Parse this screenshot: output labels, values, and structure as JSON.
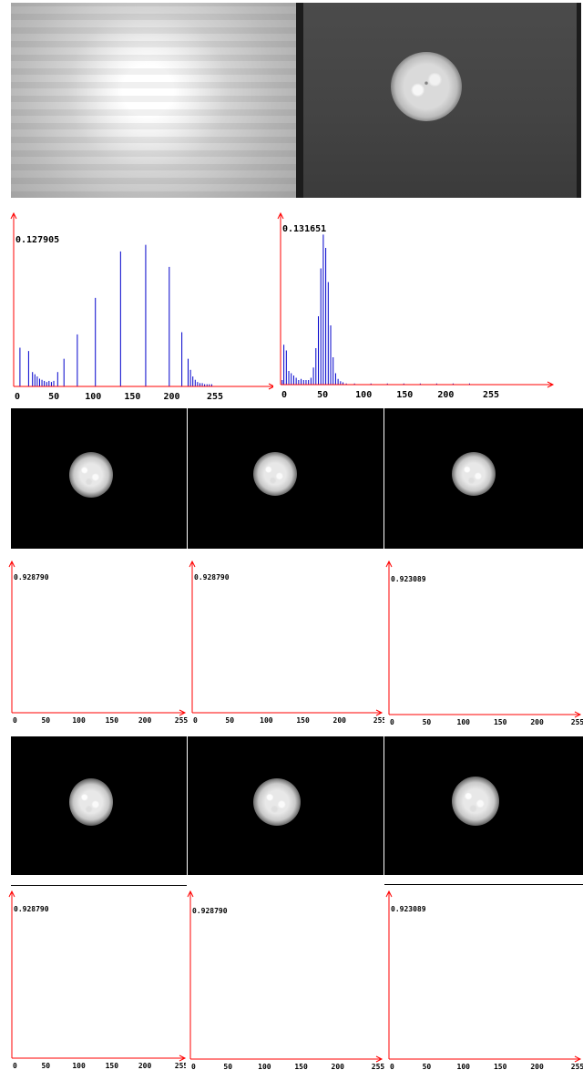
{
  "colors": {
    "axis": "#ff0000",
    "bar": "#0000cc",
    "background": "#ffffff"
  },
  "chart_data": [
    {
      "type": "bar",
      "peak_label": "0.127905",
      "xticks": [
        "0",
        "50",
        "100",
        "150",
        "200",
        "255"
      ],
      "xlim": [
        0,
        255
      ],
      "ylim": [
        0,
        0.14
      ],
      "bars": [
        {
          "x": 8,
          "y": 0.035
        },
        {
          "x": 19,
          "y": 0.032
        },
        {
          "x": 24,
          "y": 0.013
        },
        {
          "x": 27,
          "y": 0.011
        },
        {
          "x": 30,
          "y": 0.009
        },
        {
          "x": 33,
          "y": 0.007
        },
        {
          "x": 36,
          "y": 0.006
        },
        {
          "x": 39,
          "y": 0.005
        },
        {
          "x": 42,
          "y": 0.004
        },
        {
          "x": 45,
          "y": 0.005
        },
        {
          "x": 48,
          "y": 0.004
        },
        {
          "x": 51,
          "y": 0.005
        },
        {
          "x": 56,
          "y": 0.013
        },
        {
          "x": 64,
          "y": 0.025
        },
        {
          "x": 81,
          "y": 0.047
        },
        {
          "x": 104,
          "y": 0.08
        },
        {
          "x": 136,
          "y": 0.122
        },
        {
          "x": 168,
          "y": 0.127905
        },
        {
          "x": 198,
          "y": 0.108
        },
        {
          "x": 214,
          "y": 0.049
        },
        {
          "x": 222,
          "y": 0.025
        },
        {
          "x": 225,
          "y": 0.015
        },
        {
          "x": 228,
          "y": 0.009
        },
        {
          "x": 231,
          "y": 0.006
        },
        {
          "x": 234,
          "y": 0.004
        },
        {
          "x": 237,
          "y": 0.003
        },
        {
          "x": 240,
          "y": 0.003
        },
        {
          "x": 243,
          "y": 0.002
        },
        {
          "x": 246,
          "y": 0.002
        },
        {
          "x": 249,
          "y": 0.002
        },
        {
          "x": 252,
          "y": 0.002
        }
      ]
    },
    {
      "type": "bar",
      "peak_label": "0.131651",
      "xticks": [
        "0",
        "50",
        "100",
        "150",
        "200",
        "255"
      ],
      "xlim": [
        0,
        255
      ],
      "ylim": [
        0,
        0.14
      ],
      "bars": [
        {
          "x": 2,
          "y": 0.004
        },
        {
          "x": 4,
          "y": 0.035
        },
        {
          "x": 7,
          "y": 0.03
        },
        {
          "x": 10,
          "y": 0.012
        },
        {
          "x": 13,
          "y": 0.01
        },
        {
          "x": 16,
          "y": 0.008
        },
        {
          "x": 19,
          "y": 0.006
        },
        {
          "x": 22,
          "y": 0.004
        },
        {
          "x": 25,
          "y": 0.005
        },
        {
          "x": 28,
          "y": 0.004
        },
        {
          "x": 31,
          "y": 0.004
        },
        {
          "x": 34,
          "y": 0.004
        },
        {
          "x": 37,
          "y": 0.006
        },
        {
          "x": 40,
          "y": 0.015
        },
        {
          "x": 43,
          "y": 0.032
        },
        {
          "x": 46,
          "y": 0.06
        },
        {
          "x": 49,
          "y": 0.102
        },
        {
          "x": 52,
          "y": 0.131651
        },
        {
          "x": 55,
          "y": 0.12
        },
        {
          "x": 58,
          "y": 0.09
        },
        {
          "x": 61,
          "y": 0.052
        },
        {
          "x": 64,
          "y": 0.024
        },
        {
          "x": 67,
          "y": 0.01
        },
        {
          "x": 70,
          "y": 0.005
        },
        {
          "x": 73,
          "y": 0.003
        },
        {
          "x": 76,
          "y": 0.002
        },
        {
          "x": 80,
          "y": 0.001
        },
        {
          "x": 90,
          "y": 0.001
        },
        {
          "x": 110,
          "y": 0.001
        },
        {
          "x": 130,
          "y": 0.001
        },
        {
          "x": 150,
          "y": 0.001
        },
        {
          "x": 170,
          "y": 0.001
        },
        {
          "x": 190,
          "y": 0.001
        },
        {
          "x": 210,
          "y": 0.001
        },
        {
          "x": 230,
          "y": 0.001
        }
      ]
    },
    {
      "type": "bar",
      "peak_label": "0.928790",
      "xticks": [
        "0",
        "50",
        "100",
        "150",
        "200",
        "255"
      ],
      "xlim": [
        0,
        255
      ],
      "ylim": [
        0,
        1.0
      ],
      "bars": [
        {
          "x": 0,
          "y": 0.92879
        }
      ]
    },
    {
      "type": "bar",
      "peak_label": "0.928790",
      "xticks": [
        "0",
        "50",
        "100",
        "150",
        "200",
        "255"
      ],
      "xlim": [
        0,
        255
      ],
      "ylim": [
        0,
        1.0
      ],
      "bars": [
        {
          "x": 0,
          "y": 0.92879
        }
      ]
    },
    {
      "type": "bar",
      "peak_label": "0.923089",
      "xticks": [
        "0",
        "50",
        "100",
        "150",
        "200",
        "255"
      ],
      "xlim": [
        0,
        255
      ],
      "ylim": [
        0,
        1.0
      ],
      "bars": [
        {
          "x": 0,
          "y": 0.923089
        }
      ]
    },
    {
      "type": "bar",
      "peak_label": "0.928790",
      "xticks": [
        "0",
        "50",
        "100",
        "150",
        "200",
        "255"
      ],
      "xlim": [
        0,
        255
      ],
      "ylim": [
        0,
        1.0
      ],
      "bars": [
        {
          "x": 0,
          "y": 0.92879
        }
      ]
    },
    {
      "type": "bar",
      "peak_label": "0.928790",
      "xticks": [
        "0",
        "50",
        "100",
        "150",
        "200",
        "255"
      ],
      "xlim": [
        0,
        255
      ],
      "ylim": [
        0,
        1.0
      ],
      "bars": [
        {
          "x": 0,
          "y": 0.92879
        }
      ]
    },
    {
      "type": "bar",
      "peak_label": "0.923089",
      "xticks": [
        "0",
        "50",
        "100",
        "150",
        "200",
        "255"
      ],
      "xlim": [
        0,
        255
      ],
      "ylim": [
        0,
        1.0
      ],
      "bars": [
        {
          "x": 0,
          "y": 0.923089
        }
      ]
    }
  ]
}
